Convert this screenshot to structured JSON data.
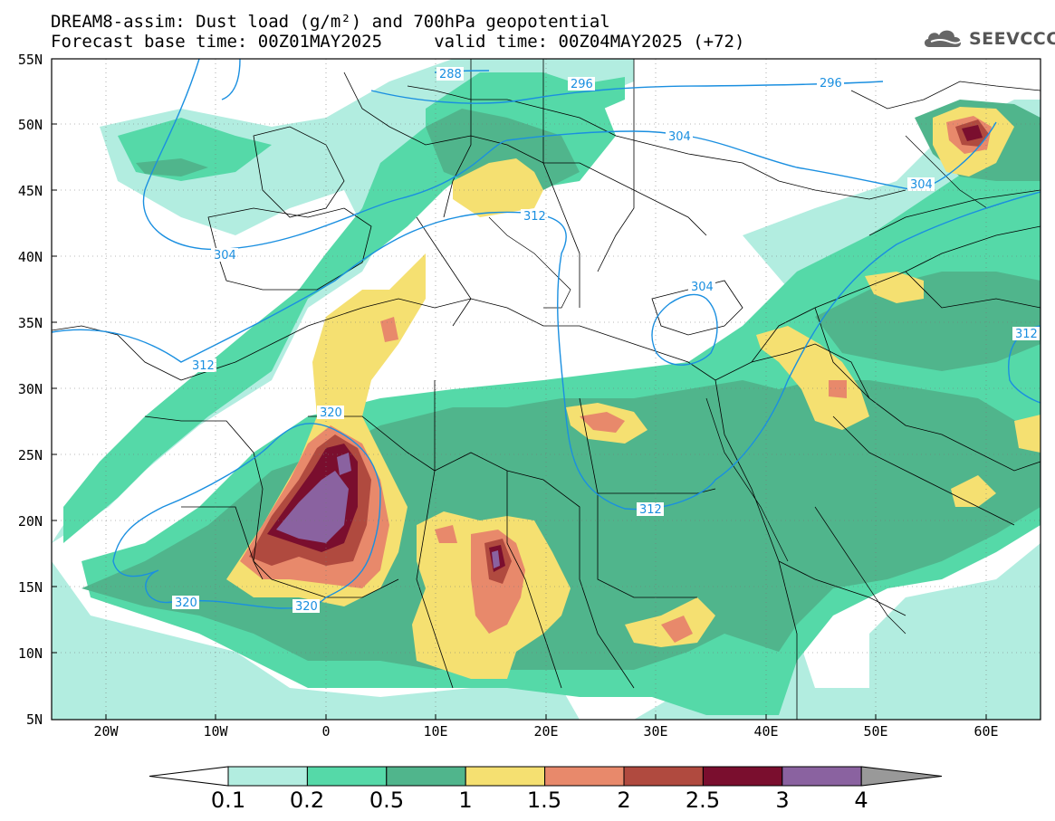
{
  "title": {
    "line1": "DREAM8-assim: Dust load (g/m²) and 700hPa geopotential",
    "line2": "Forecast base time: 00Z01MAY2025     valid time: 00Z04MAY2025 (+72)"
  },
  "logo": {
    "text": "SEEVCCC",
    "icon": "cloud-icon"
  },
  "map": {
    "lat_labels": [
      "55N",
      "50N",
      "45N",
      "40N",
      "35N",
      "30N",
      "25N",
      "20N",
      "15N",
      "10N",
      "5N"
    ],
    "lon_labels": [
      "20W",
      "10W",
      "0",
      "10E",
      "20E",
      "30E",
      "40E",
      "50E",
      "60E"
    ],
    "extent": {
      "lon_min": -25,
      "lon_max": 65,
      "lat_min": 5,
      "lat_max": 55
    },
    "contour_labels": [
      "288",
      "296",
      "296",
      "304",
      "304",
      "304",
      "304",
      "312",
      "312",
      "312",
      "312",
      "320",
      "320",
      "320"
    ]
  },
  "colorbar": {
    "labels": [
      "0.1",
      "0.2",
      "0.5",
      "1",
      "1.5",
      "2",
      "2.5",
      "3",
      "4"
    ],
    "colors": [
      "#ffffff",
      "#b2ede0",
      "#55d9a8",
      "#50b58c",
      "#f5e071",
      "#e8896b",
      "#b04a3f",
      "#7a0e2e",
      "#8a62a0",
      "#999999"
    ],
    "contour_color": "#1a8fe0"
  }
}
